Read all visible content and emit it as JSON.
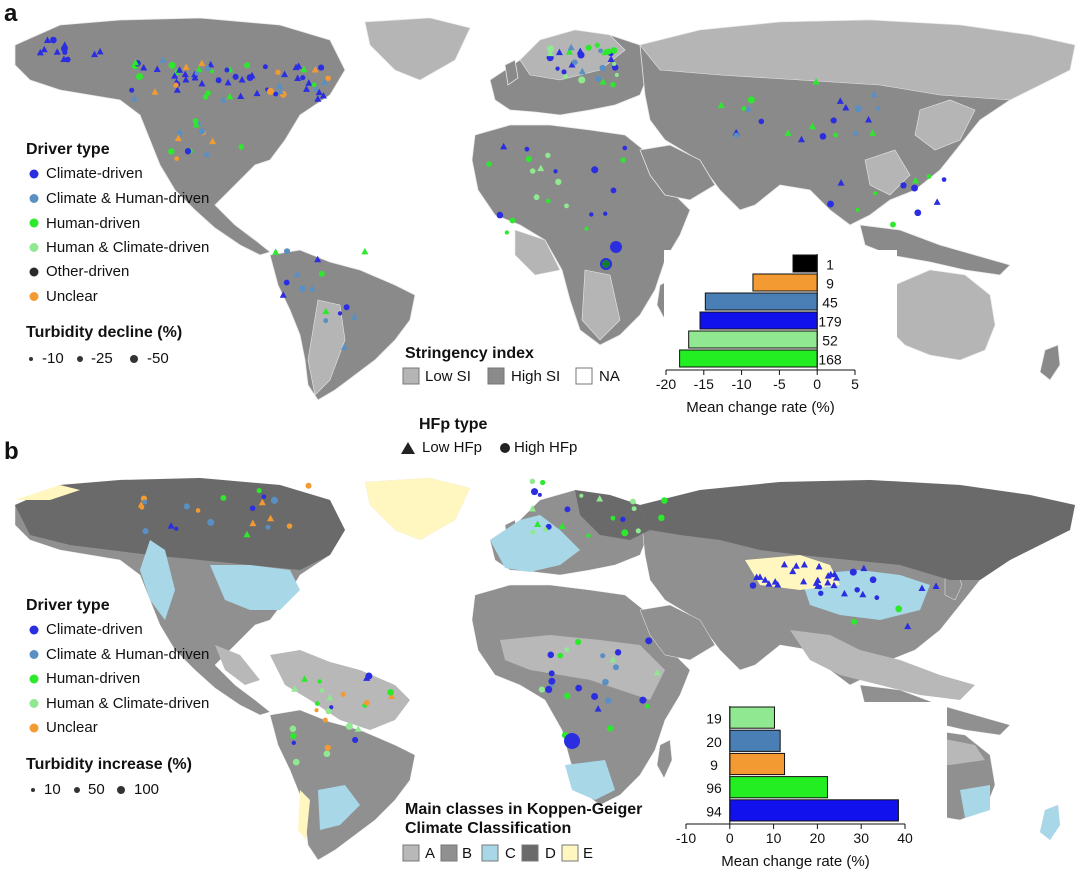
{
  "colors": {
    "climate": "#2b2ee0",
    "climate_human": "#5a8fc4",
    "human": "#2ee82e",
    "human_climate": "#90e890",
    "other": "#2a2a2a",
    "unclear": "#f39a33",
    "land_low_si": "#b5b5b5",
    "land_high_si": "#8a8a8a",
    "kg_a": "#b8b8b8",
    "kg_b": "#909090",
    "kg_c": "#a8d8e8",
    "kg_d": "#6a6a6a",
    "kg_e": "#fff6c0"
  },
  "panel_a": {
    "letter": "a",
    "legend_driver": {
      "title": "Driver type",
      "items": [
        {
          "label": "Climate-driven",
          "color": "#2b2ee0"
        },
        {
          "label": "Climate & Human-driven",
          "color": "#5a8fc4"
        },
        {
          "label": "Human-driven",
          "color": "#2ee82e"
        },
        {
          "label": "Human & Climate-driven",
          "color": "#90e890"
        },
        {
          "label": "Other-driven",
          "color": "#2a2a2a"
        },
        {
          "label": "Unclear",
          "color": "#f39a33"
        }
      ]
    },
    "legend_size": {
      "title": "Turbidity decline (%)",
      "items": [
        "-10",
        "-25",
        "-50"
      ]
    },
    "legend_stringency": {
      "title": "Stringency index",
      "items": [
        {
          "label": "Low SI",
          "color": "#b5b5b5"
        },
        {
          "label": "High SI",
          "color": "#8a8a8a"
        },
        {
          "label": "NA",
          "color": "#ffffff"
        }
      ]
    }
  },
  "hfp_legend": {
    "title": "HFp type",
    "low": "Low HFp",
    "high": "High HFp"
  },
  "panel_b": {
    "letter": "b",
    "legend_driver": {
      "title": "Driver type",
      "items": [
        {
          "label": "Climate-driven",
          "color": "#2b2ee0"
        },
        {
          "label": "Climate & Human-driven",
          "color": "#5a8fc4"
        },
        {
          "label": "Human-driven",
          "color": "#2ee82e"
        },
        {
          "label": "Human & Climate-driven",
          "color": "#90e890"
        },
        {
          "label": "Unclear",
          "color": "#f39a33"
        }
      ]
    },
    "legend_size": {
      "title": "Turbidity increase (%)",
      "items": [
        "10",
        "50",
        "100"
      ]
    },
    "legend_koppen": {
      "title_line1": "Main classes in Koppen-Geiger",
      "title_line2": "Climate Classification",
      "items": [
        {
          "label": "A",
          "color": "#b8b8b8"
        },
        {
          "label": "B",
          "color": "#909090"
        },
        {
          "label": "C",
          "color": "#a8d8e8"
        },
        {
          "label": "D",
          "color": "#6a6a6a"
        },
        {
          "label": "E",
          "color": "#fff6c0"
        }
      ]
    }
  },
  "chart_data": [
    {
      "type": "bar",
      "orientation": "horizontal",
      "xlabel": "Mean change rate (%)",
      "xlim": [
        -20,
        5
      ],
      "xticks": [
        "-20",
        "-15",
        "-10",
        "-5",
        "0",
        "5"
      ],
      "bars": [
        {
          "category": "Other-driven",
          "value": -3.2,
          "count": "1",
          "color": "#000000"
        },
        {
          "category": "Unclear",
          "value": -8.5,
          "count": "9",
          "color": "#f39a33"
        },
        {
          "category": "Climate & Human-driven",
          "value": -14.8,
          "count": "45",
          "color": "#4a7fb5"
        },
        {
          "category": "Climate-driven",
          "value": -15.5,
          "count": "179",
          "color": "#1111ee"
        },
        {
          "category": "Human & Climate-driven",
          "value": -17.0,
          "count": "52",
          "color": "#90e890"
        },
        {
          "category": "Human-driven",
          "value": -18.2,
          "count": "168",
          "color": "#22ee22"
        }
      ]
    },
    {
      "type": "bar",
      "orientation": "horizontal",
      "xlabel": "Mean change rate (%)",
      "xlim": [
        -10,
        40
      ],
      "xticks": [
        "-10",
        "0",
        "10",
        "20",
        "30",
        "40"
      ],
      "bars": [
        {
          "category": "Human & Climate-driven",
          "value": 10.2,
          "count": "19",
          "color": "#90e890"
        },
        {
          "category": "Climate & Human-driven",
          "value": 11.5,
          "count": "20",
          "color": "#4a7fb5"
        },
        {
          "category": "Unclear",
          "value": 12.5,
          "count": "9",
          "color": "#f39a33"
        },
        {
          "category": "Human-driven",
          "value": 22.3,
          "count": "96",
          "color": "#22ee22"
        },
        {
          "category": "Climate-driven",
          "value": 38.5,
          "count": "94",
          "color": "#1111ee"
        }
      ]
    }
  ]
}
